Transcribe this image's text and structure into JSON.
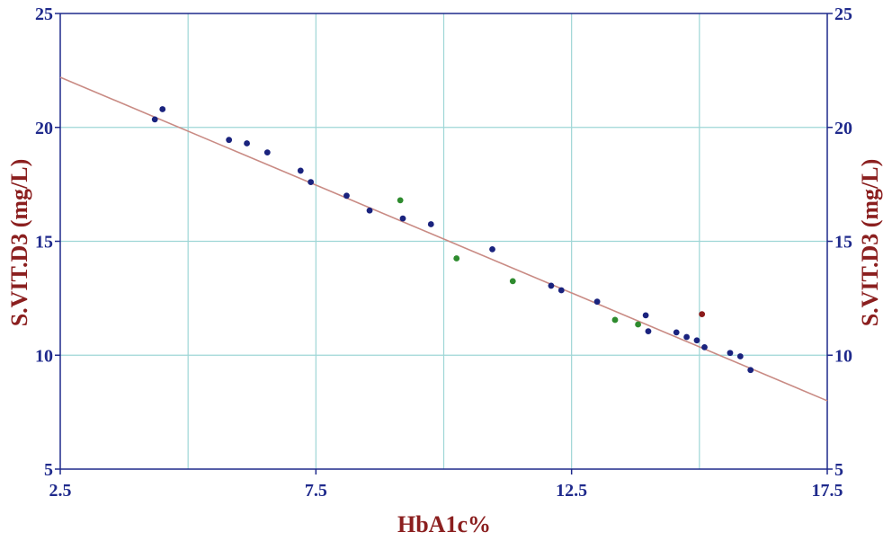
{
  "chart_data": {
    "type": "scatter",
    "title": "",
    "xlabel": "HbA1c%",
    "ylabel": "S.VIT.D3 (mg/L)",
    "ylabel_right": "S.VIT.D3 (mg/L)",
    "xlim": [
      2.5,
      17.5
    ],
    "ylim": [
      5,
      25
    ],
    "x_ticks": [
      "2.5",
      "7.5",
      "12.5",
      "17.5"
    ],
    "y_ticks": [
      "5",
      "10",
      "15",
      "20",
      "25"
    ],
    "grid": true,
    "x_minor_gridlines": [
      5,
      10,
      15
    ],
    "colors": {
      "axis": "#1f2a8c",
      "grid": "#9ed6d6",
      "trendline": "#c98b84",
      "label": "#8b1f1f"
    },
    "trendline": {
      "x": [
        2.5,
        17.5
      ],
      "y": [
        22.2,
        8.0
      ]
    },
    "series": [
      {
        "color": "#1a237e",
        "points": [
          [
            4.35,
            20.35
          ],
          [
            4.5,
            20.8
          ],
          [
            5.8,
            19.45
          ],
          [
            6.15,
            19.3
          ],
          [
            6.55,
            18.9
          ],
          [
            7.2,
            18.1
          ],
          [
            7.4,
            17.6
          ],
          [
            8.1,
            17.0
          ],
          [
            8.55,
            16.35
          ],
          [
            9.2,
            16.0
          ],
          [
            9.75,
            15.75
          ],
          [
            10.95,
            14.65
          ],
          [
            12.1,
            13.05
          ],
          [
            12.3,
            12.85
          ],
          [
            13.0,
            12.35
          ],
          [
            13.95,
            11.75
          ],
          [
            14.0,
            11.05
          ],
          [
            14.55,
            11.0
          ],
          [
            14.75,
            10.8
          ],
          [
            14.95,
            10.65
          ],
          [
            15.1,
            10.35
          ],
          [
            15.6,
            10.1
          ],
          [
            15.8,
            9.95
          ],
          [
            16.0,
            9.35
          ]
        ]
      },
      {
        "color": "#2e8b2e",
        "points": [
          [
            9.15,
            16.8
          ],
          [
            10.25,
            14.25
          ],
          [
            11.35,
            13.25
          ],
          [
            13.35,
            11.55
          ],
          [
            13.8,
            11.35
          ]
        ]
      },
      {
        "color": "#8b1a1a",
        "points": [
          [
            15.05,
            11.8
          ]
        ]
      }
    ]
  }
}
